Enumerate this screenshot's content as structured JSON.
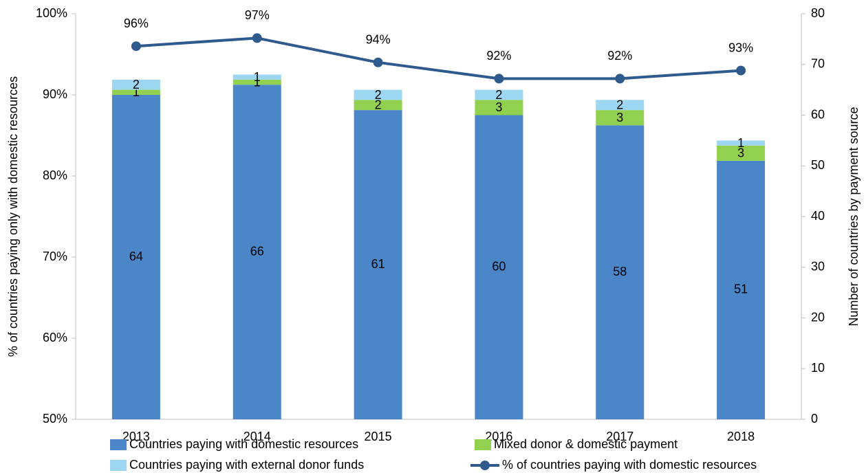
{
  "chart_data": {
    "type": "bar-line",
    "categories": [
      "2013",
      "2014",
      "2015",
      "2016",
      "2017",
      "2018"
    ],
    "ylabel": "% of countries paying only with domestic resources",
    "y2label": "Number of countries by payment source",
    "ylim": [
      50,
      100
    ],
    "yticks": [
      {
        "value": 50,
        "label": "50%"
      },
      {
        "value": 60,
        "label": "60%"
      },
      {
        "value": 70,
        "label": "70%"
      },
      {
        "value": 80,
        "label": "80%"
      },
      {
        "value": 90,
        "label": "90%"
      },
      {
        "value": 100,
        "label": "100%"
      }
    ],
    "y2lim": [
      0,
      80
    ],
    "y2ticks": [
      0,
      10,
      20,
      30,
      40,
      50,
      60,
      70,
      80
    ],
    "legend": "bottom",
    "series": [
      {
        "name": "Countries paying with domestic resources",
        "type": "bar",
        "axis": "y2",
        "color": "#4a86c8",
        "values": [
          64,
          66,
          61,
          60,
          58,
          51
        ]
      },
      {
        "name": "Mixed donor & domestic payment",
        "type": "bar",
        "axis": "y2",
        "color": "#92d050",
        "values": [
          1,
          1,
          2,
          3,
          3,
          3
        ]
      },
      {
        "name": "Countries paying with external donor funds",
        "type": "bar",
        "axis": "y2",
        "color": "#9dd6f0",
        "values": [
          2,
          1,
          2,
          2,
          2,
          1
        ]
      },
      {
        "name": "% of countries paying with domestic resources",
        "type": "line",
        "axis": "y",
        "color": "#2e5a8e",
        "values": [
          96,
          97,
          94,
          92,
          92,
          93
        ],
        "value_labels": [
          "96%",
          "97%",
          "94%",
          "92%",
          "92%",
          "93%"
        ]
      }
    ]
  }
}
